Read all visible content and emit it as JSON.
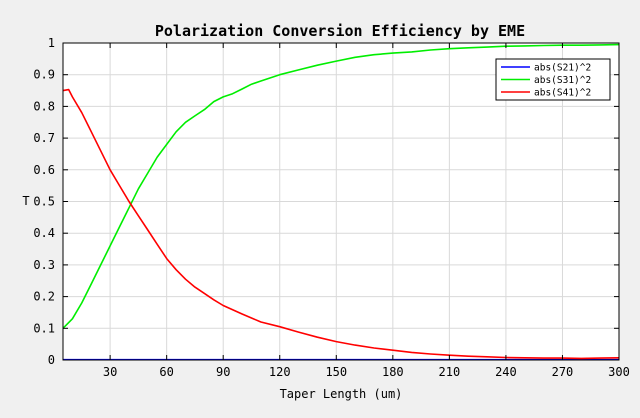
{
  "chart_data": {
    "type": "line",
    "title": "Polarization Conversion Efficiency by EME",
    "xlabel": "Taper Length (um)",
    "ylabel": "T",
    "xlim": [
      5,
      300
    ],
    "ylim": [
      0,
      1
    ],
    "xticks": [
      30,
      60,
      90,
      120,
      150,
      180,
      210,
      240,
      270,
      300
    ],
    "yticks": [
      0,
      0.1,
      0.2,
      0.3,
      0.4,
      0.5,
      0.6,
      0.7,
      0.8,
      0.9,
      1
    ],
    "grid": true,
    "legend_position": "top-right",
    "series": [
      {
        "name": "abs(S21)^2",
        "color": "#0000ff",
        "points": [
          [
            5,
            0.001
          ],
          [
            100,
            0.001
          ],
          [
            200,
            0.001
          ],
          [
            300,
            0.001
          ]
        ]
      },
      {
        "name": "abs(S31)^2",
        "color": "#00ee00",
        "points": [
          [
            5,
            0.1
          ],
          [
            10,
            0.13
          ],
          [
            15,
            0.18
          ],
          [
            20,
            0.24
          ],
          [
            25,
            0.3
          ],
          [
            30,
            0.36
          ],
          [
            35,
            0.42
          ],
          [
            40,
            0.48
          ],
          [
            45,
            0.54
          ],
          [
            50,
            0.59
          ],
          [
            55,
            0.64
          ],
          [
            60,
            0.68
          ],
          [
            65,
            0.72
          ],
          [
            70,
            0.75
          ],
          [
            75,
            0.77
          ],
          [
            80,
            0.79
          ],
          [
            85,
            0.815
          ],
          [
            90,
            0.83
          ],
          [
            95,
            0.84
          ],
          [
            100,
            0.855
          ],
          [
            105,
            0.87
          ],
          [
            110,
            0.88
          ],
          [
            120,
            0.9
          ],
          [
            130,
            0.915
          ],
          [
            140,
            0.93
          ],
          [
            150,
            0.943
          ],
          [
            160,
            0.955
          ],
          [
            170,
            0.963
          ],
          [
            180,
            0.968
          ],
          [
            190,
            0.972
          ],
          [
            200,
            0.978
          ],
          [
            210,
            0.982
          ],
          [
            220,
            0.985
          ],
          [
            230,
            0.987
          ],
          [
            240,
            0.99
          ],
          [
            250,
            0.991
          ],
          [
            260,
            0.992
          ],
          [
            270,
            0.993
          ],
          [
            280,
            0.993
          ],
          [
            290,
            0.994
          ],
          [
            300,
            0.995
          ]
        ]
      },
      {
        "name": "abs(S41)^2",
        "color": "#ff0000",
        "points": [
          [
            5,
            0.85
          ],
          [
            8,
            0.853
          ],
          [
            10,
            0.83
          ],
          [
            15,
            0.78
          ],
          [
            20,
            0.72
          ],
          [
            25,
            0.66
          ],
          [
            30,
            0.6
          ],
          [
            35,
            0.55
          ],
          [
            40,
            0.5
          ],
          [
            45,
            0.455
          ],
          [
            50,
            0.41
          ],
          [
            55,
            0.365
          ],
          [
            60,
            0.32
          ],
          [
            65,
            0.285
          ],
          [
            70,
            0.255
          ],
          [
            75,
            0.23
          ],
          [
            80,
            0.21
          ],
          [
            85,
            0.19
          ],
          [
            90,
            0.172
          ],
          [
            100,
            0.145
          ],
          [
            110,
            0.12
          ],
          [
            120,
            0.105
          ],
          [
            130,
            0.088
          ],
          [
            140,
            0.072
          ],
          [
            150,
            0.058
          ],
          [
            160,
            0.047
          ],
          [
            170,
            0.038
          ],
          [
            180,
            0.031
          ],
          [
            190,
            0.024
          ],
          [
            200,
            0.019
          ],
          [
            210,
            0.015
          ],
          [
            220,
            0.012
          ],
          [
            230,
            0.01
          ],
          [
            240,
            0.008
          ],
          [
            250,
            0.007
          ],
          [
            260,
            0.006
          ],
          [
            270,
            0.006
          ],
          [
            280,
            0.005
          ],
          [
            290,
            0.006
          ],
          [
            300,
            0.007
          ]
        ]
      }
    ]
  }
}
